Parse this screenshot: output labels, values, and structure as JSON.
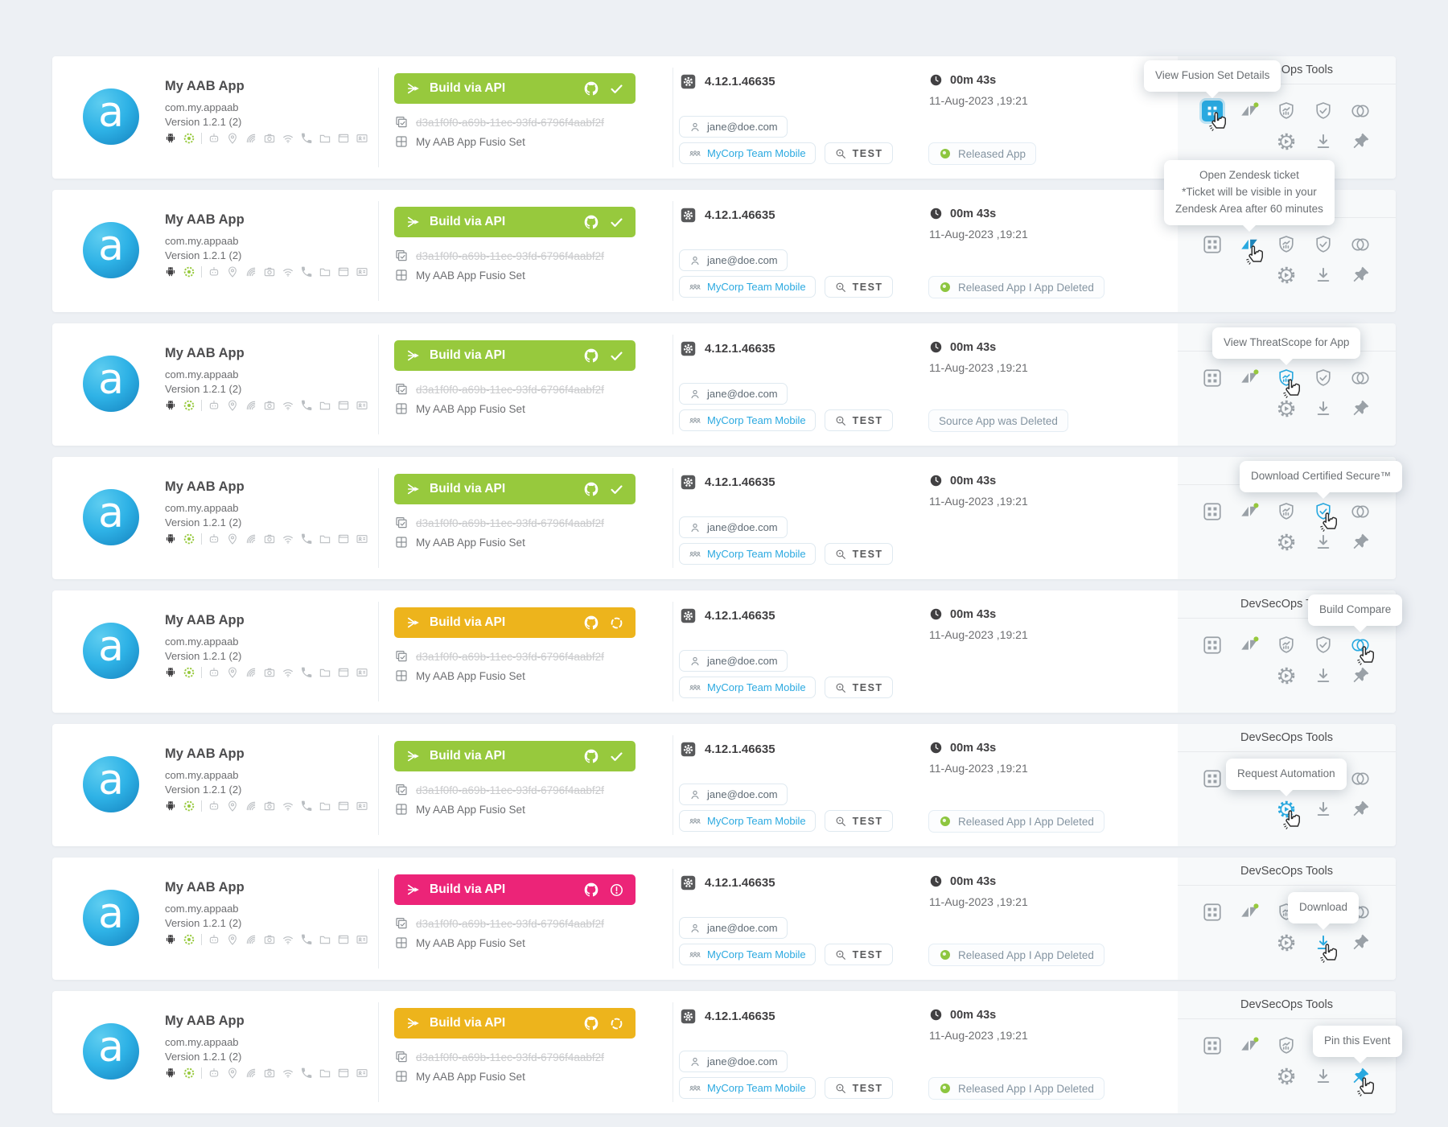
{
  "colors": {
    "accent_blue": "#29a9e0",
    "success_green": "#97c93d",
    "warning_yellow": "#edb41c",
    "error_pink": "#ec2478",
    "status_dot_green": "#8dc63f",
    "page_background": "#edf0f4",
    "tools_panel_background": "#f7f9fa"
  },
  "app": {
    "name": "My AAB App",
    "package": "com.my.appaab",
    "version_line": "Version 1.2.1 (2)",
    "icon_letter": "a",
    "capability_icons": [
      "android",
      "android-enterprise",
      "divider",
      "bot",
      "location",
      "nfc",
      "camera",
      "wifi",
      "phone",
      "folder",
      "browser",
      "contacts"
    ]
  },
  "build": {
    "label": "Build via API",
    "hash": "d3a1f0f0-a69b-11ec-93fd-6796f4aabf2f",
    "fusion_set": "My AAB App Fusio Set"
  },
  "meta": {
    "build_number": "4.12.1.46635",
    "email": "jane@doe.com",
    "team": "MyCorp Team Mobile",
    "env": "TEST"
  },
  "timing": {
    "duration": "00m 43s",
    "datetime": "11-Aug-2023 ,19:21"
  },
  "tools": {
    "title": "DevSecOps Tools",
    "buttons": [
      "fusion-set",
      "zendesk-ticket",
      "threatscope",
      "certified-secure",
      "build-compare",
      "request-automation",
      "download",
      "pin-event"
    ]
  },
  "rows": [
    {
      "build_state": "success",
      "status": "Released App",
      "status_dot": true,
      "active_tool": "fusion",
      "tooltip": [
        "View Fusion Set Details"
      ]
    },
    {
      "build_state": "success",
      "status": "Released App I App Deleted",
      "status_dot": true,
      "active_tool": "zendesk",
      "tooltip": [
        "Open Zendesk ticket",
        "*Ticket will be visible in your",
        "Zendesk Area after 60 minutes"
      ]
    },
    {
      "build_state": "success",
      "status": "Source App was Deleted",
      "status_dot": false,
      "active_tool": "threatscope",
      "tooltip": [
        "View ThreatScope for App"
      ]
    },
    {
      "build_state": "success",
      "status": null,
      "status_dot": false,
      "active_tool": "certified",
      "tooltip": [
        "Download Certified Secure™"
      ]
    },
    {
      "build_state": "progress",
      "status": null,
      "status_dot": false,
      "active_tool": "compare",
      "tooltip": [
        "Build Compare"
      ]
    },
    {
      "build_state": "success",
      "status": "Released App I App Deleted",
      "status_dot": true,
      "active_tool": "automation",
      "tooltip": [
        "Request Automation"
      ]
    },
    {
      "build_state": "error",
      "status": "Released App I App Deleted",
      "status_dot": true,
      "active_tool": "download",
      "tooltip": [
        "Download"
      ]
    },
    {
      "build_state": "progress",
      "status": "Released App I App Deleted",
      "status_dot": true,
      "active_tool": "pin",
      "tooltip": [
        "Pin this Event"
      ]
    }
  ]
}
